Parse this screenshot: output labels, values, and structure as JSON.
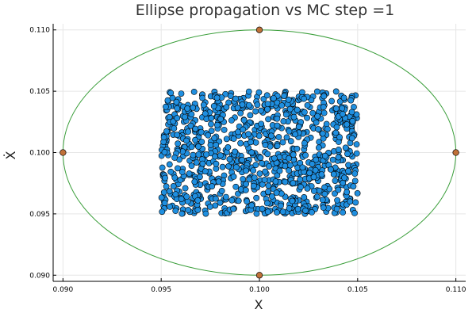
{
  "chart_data": {
    "type": "scatter",
    "title": "Ellipse propagation vs MC step =1",
    "xlabel": "X",
    "ylabel": "Ẋ",
    "xlim": [
      0.0895,
      0.1105
    ],
    "ylim": [
      0.0895,
      0.1105
    ],
    "x_ticks": [
      "0.090",
      "0.095",
      "0.100",
      "0.105",
      "0.110"
    ],
    "y_ticks": [
      "0.090",
      "0.095",
      "0.100",
      "0.105",
      "0.110"
    ],
    "x_tick_values": [
      0.09,
      0.095,
      0.1,
      0.105,
      0.11
    ],
    "y_tick_values": [
      0.09,
      0.095,
      0.1,
      0.105,
      0.11
    ],
    "grid": true,
    "legend": "none",
    "ellipse": {
      "center": [
        0.1,
        0.1
      ],
      "semi_axis_x": 0.01,
      "semi_axis_y": 0.01,
      "color": "#3a9e3a"
    },
    "ellipse_extreme_points": {
      "x": [
        0.09,
        0.11,
        0.1,
        0.1
      ],
      "y": [
        0.1,
        0.1,
        0.11,
        0.09
      ],
      "color": "#c07138"
    },
    "samples": {
      "distribution": "uniform",
      "x_range": [
        0.095,
        0.105
      ],
      "y_range": [
        0.095,
        0.105
      ],
      "count": 1000,
      "color": "#1f8fe0"
    }
  }
}
